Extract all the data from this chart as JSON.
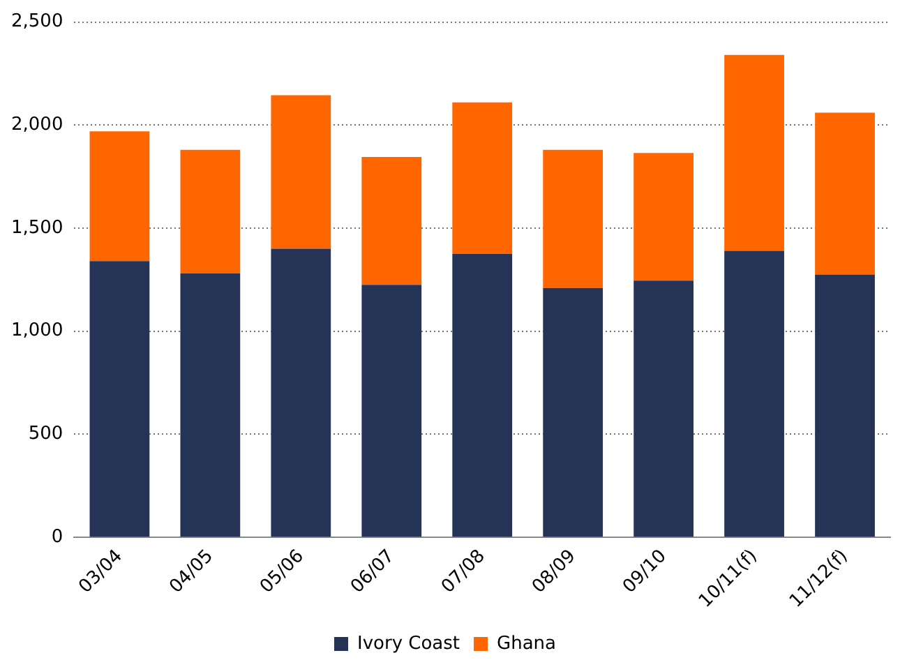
{
  "chart_data": {
    "type": "bar",
    "stacked": true,
    "categories": [
      "03/04",
      "04/05",
      "05/06",
      "06/07",
      "07/08",
      "08/09",
      "09/10",
      "10/11(f)",
      "11/12(f)"
    ],
    "series": [
      {
        "name": "Ivory Coast",
        "color": "#253356",
        "values": [
          1340,
          1280,
          1400,
          1225,
          1375,
          1210,
          1245,
          1390,
          1275
        ]
      },
      {
        "name": "Ghana",
        "color": "#ff6600",
        "values": [
          630,
          600,
          745,
          620,
          735,
          670,
          620,
          950,
          785
        ]
      }
    ],
    "ylim": [
      0,
      2500
    ],
    "yticks": [
      0,
      {
        "value": 500,
        "label": "500"
      },
      {
        "value": 1000,
        "label": "1,000"
      },
      {
        "value": 1500,
        "label": "1,500"
      },
      {
        "value": 2000,
        "label": "2,000"
      },
      {
        "value": 2500,
        "label": "2,500"
      }
    ],
    "grid": "y",
    "legend": "bottom"
  }
}
